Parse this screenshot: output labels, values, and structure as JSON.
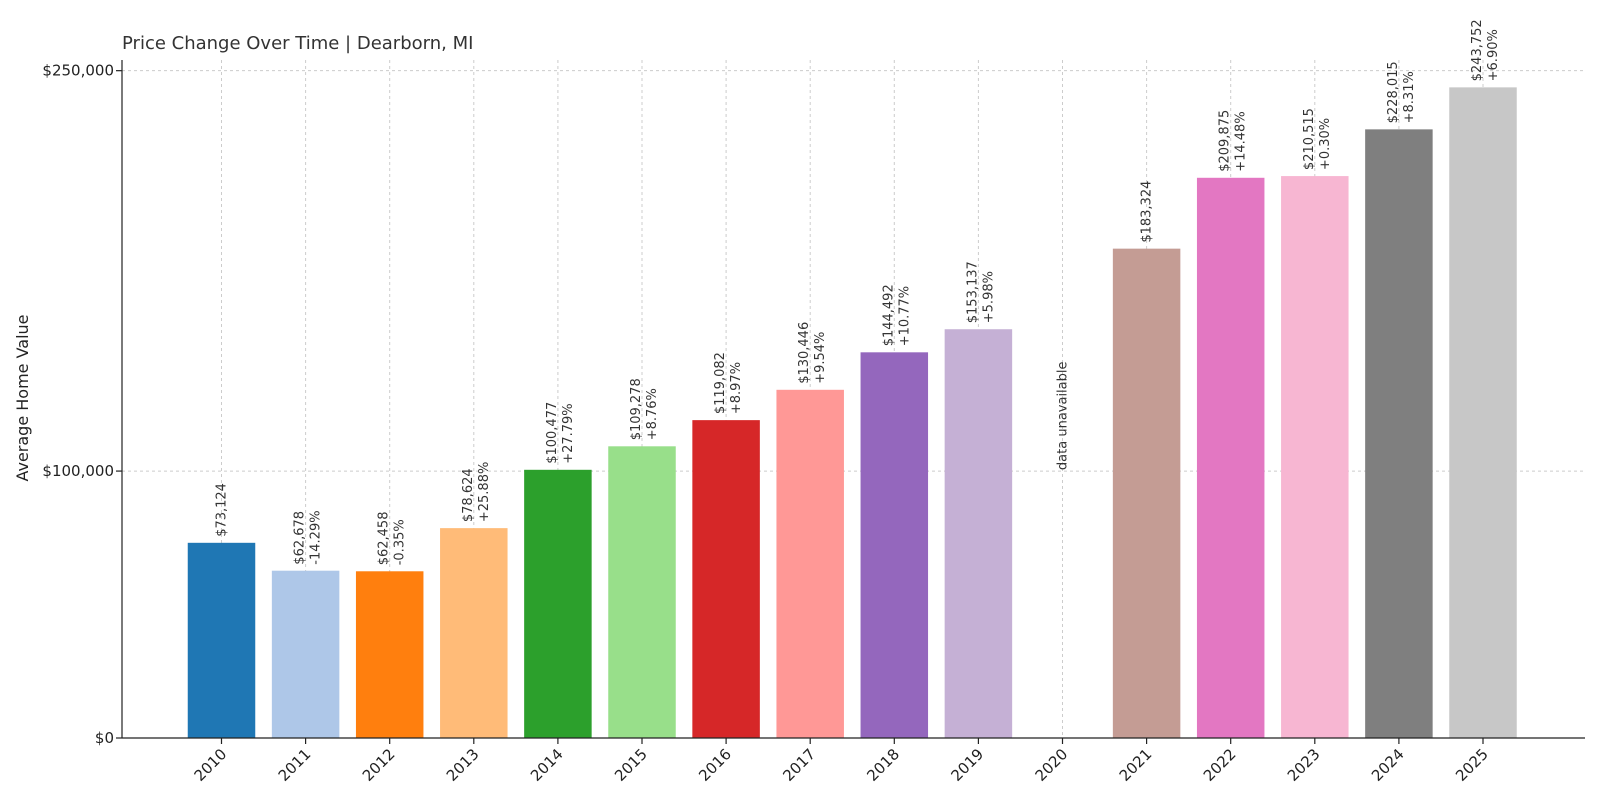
{
  "chart_data": {
    "type": "bar",
    "title": "Price Change Over Time | Dearborn, MI",
    "xlabel": "",
    "ylabel": "Average Home Value",
    "ylim": [
      0,
      250000
    ],
    "yticks": [
      {
        "value": 0,
        "label": "$0"
      },
      {
        "value": 100000,
        "label": "$100,000"
      },
      {
        "value": 250000,
        "label": "$250,000"
      }
    ],
    "grid": true,
    "categories": [
      "2010",
      "2011",
      "2012",
      "2013",
      "2014",
      "2015",
      "2016",
      "2017",
      "2018",
      "2019",
      "2020",
      "2021",
      "2022",
      "2023",
      "2024",
      "2025"
    ],
    "values": [
      73124,
      62678,
      62458,
      78624,
      100477,
      109278,
      119082,
      130446,
      144492,
      153137,
      null,
      183324,
      209875,
      210515,
      228015,
      243752
    ],
    "value_labels": [
      "$73,124",
      "$62,678",
      "$62,458",
      "$78,624",
      "$100,477",
      "$109,278",
      "$119,082",
      "$130,446",
      "$144,492",
      "$153,137",
      "",
      "$183,324",
      "$209,875",
      "$210,515",
      "$228,015",
      "$243,752"
    ],
    "change_labels": [
      "",
      "-14.29%",
      "-0.35%",
      "+25.88%",
      "+27.79%",
      "+8.76%",
      "+8.97%",
      "+9.54%",
      "+10.77%",
      "+5.98%",
      "",
      "",
      "+14.48%",
      "+0.30%",
      "+8.31%",
      "+6.90%"
    ],
    "missing_label": "data unavailable",
    "colors": [
      "#1f77b4",
      "#aec7e8",
      "#ff7f0e",
      "#ffbb78",
      "#2ca02c",
      "#98df8a",
      "#d62728",
      "#ff9896",
      "#9467bd",
      "#c5b0d5",
      "#8c564b",
      "#c49c94",
      "#e377c2",
      "#f7b6d2",
      "#7f7f7f",
      "#c7c7c7"
    ]
  }
}
